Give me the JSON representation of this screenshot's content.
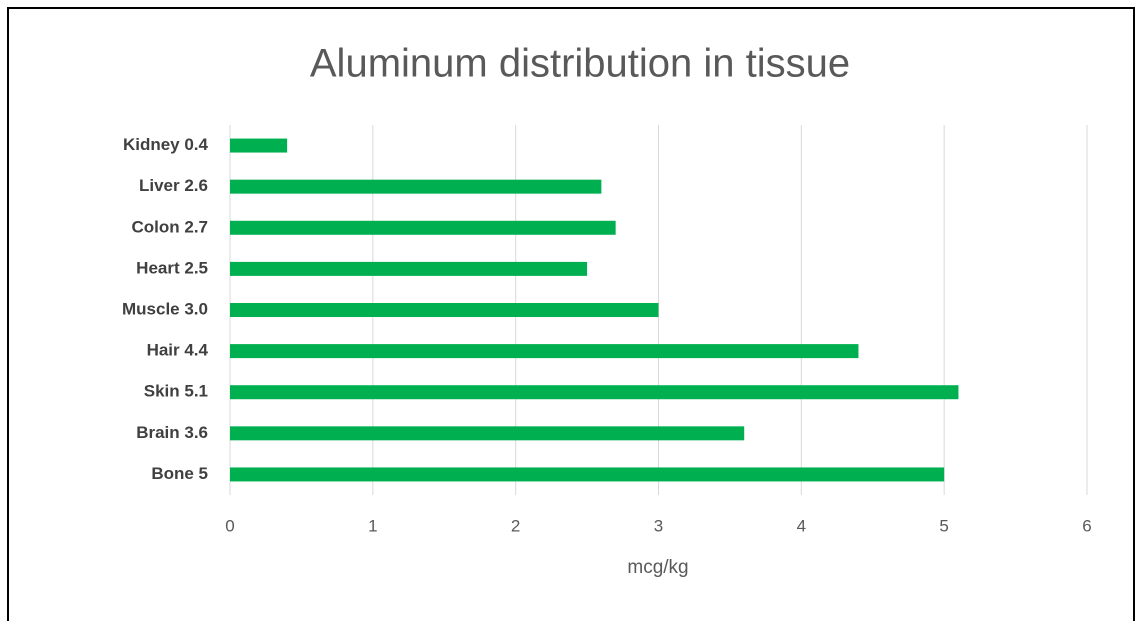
{
  "chart_data": {
    "type": "bar",
    "orientation": "horizontal",
    "title": "Aluminum distribution in tissue",
    "x_label": "mcg/kg",
    "categories": [
      "Kidney 0.4",
      "Liver 2.6",
      "Colon 2.7",
      "Heart 2.5",
      "Muscle 3.0",
      "Hair 4.4",
      "Skin 5.1",
      "Brain 3.6",
      "Bone 5"
    ],
    "values": [
      0.4,
      2.6,
      2.7,
      2.5,
      3.0,
      4.4,
      5.1,
      3.6,
      5
    ],
    "color": "#00b050",
    "xlim": [
      0,
      6
    ],
    "xticks": [
      0,
      1,
      2,
      3,
      4,
      5,
      6
    ],
    "grid": true
  }
}
